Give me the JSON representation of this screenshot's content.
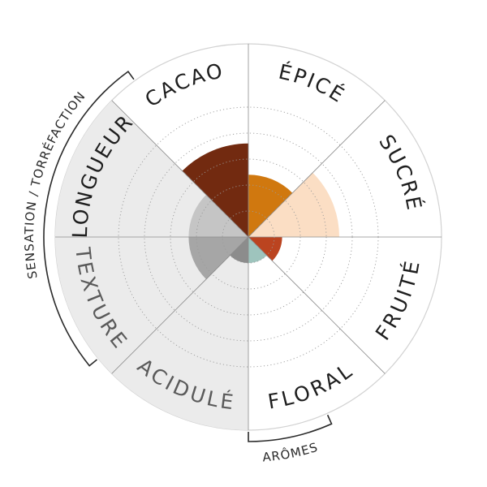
{
  "chart_data": {
    "type": "radial-bar",
    "scale_max": 5,
    "ring_count": 5,
    "gridlines": "dotted",
    "segments": [
      {
        "label": "ÉPICÉ",
        "value": 2.4,
        "color": "#d0780f",
        "group": "arômes"
      },
      {
        "label": "SUCRÉ",
        "value": 3.5,
        "color": "#fbdec4",
        "group": "arômes"
      },
      {
        "label": "FRUITÉ",
        "value": 1.3,
        "color": "#bb4420",
        "group": "arômes"
      },
      {
        "label": "FLORAL",
        "value": 1.0,
        "color": "#9ec4bd",
        "group": "arômes"
      },
      {
        "label": "ACIDULÉ",
        "value": 1.0,
        "color": "#8c8c8c",
        "group": "sensation"
      },
      {
        "label": "TEXTURE",
        "value": 2.3,
        "color": "#a6a6a6",
        "group": "sensation"
      },
      {
        "label": "LONGUEUR",
        "value": 2.3,
        "color": "#c5c5c5",
        "group": "sensation"
      },
      {
        "label": "CACAO",
        "value": 3.6,
        "color": "#722a10",
        "group": "sensation"
      }
    ],
    "groups": [
      {
        "label": "SENSATION / TORRÉFACTION"
      },
      {
        "label": "ARÔMES"
      }
    ]
  },
  "colors": {
    "background": "#ffffff",
    "sensation_background": "#ebebeb",
    "outer_ring": "#d2d2d2",
    "grid": "#9a9a9a",
    "axis": "#8c8c8c",
    "bracket": "#2a2a2a"
  }
}
